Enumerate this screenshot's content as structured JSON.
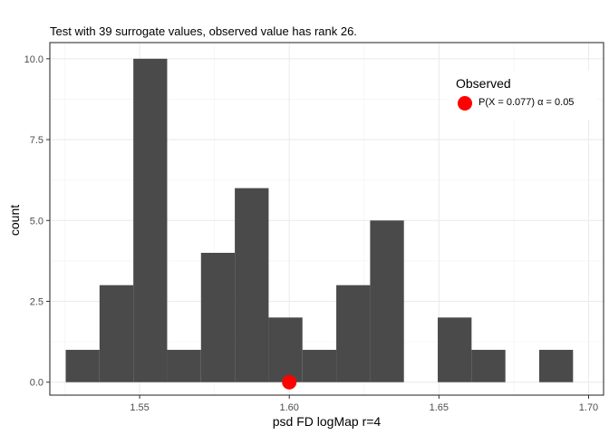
{
  "chart_data": {
    "type": "bar",
    "title": "Test with 39 surrogate values, observed value has rank 26.",
    "xlabel": "psd FD logMap r=4",
    "ylabel": "count",
    "xlim": [
      1.52,
      1.705
    ],
    "ylim": [
      -0.4,
      10.5
    ],
    "x_ticks": [
      "1.55",
      "1.60",
      "1.65",
      "1.70"
    ],
    "y_ticks": [
      "0.0",
      "2.5",
      "5.0",
      "7.5",
      "10.0"
    ],
    "bin_width": 0.0113,
    "bin_starts": [
      1.5253,
      1.5366,
      1.5479,
      1.5592,
      1.5705,
      1.5818,
      1.5931,
      1.6044,
      1.6157,
      1.627,
      1.6383,
      1.6496,
      1.6609,
      1.6722,
      1.6835,
      1.6948
    ],
    "values": [
      1,
      3,
      10,
      1,
      4,
      6,
      2,
      1,
      3,
      5,
      0,
      2,
      1,
      0,
      1
    ],
    "bar_color": "#4a4a4a",
    "grid": true,
    "observed": {
      "x": 1.6,
      "y": 0,
      "color": "#ff0000"
    },
    "legend": {
      "title": "Observed",
      "label": "P(X = 0.077)  α = 0.05",
      "position": "top-right"
    }
  }
}
